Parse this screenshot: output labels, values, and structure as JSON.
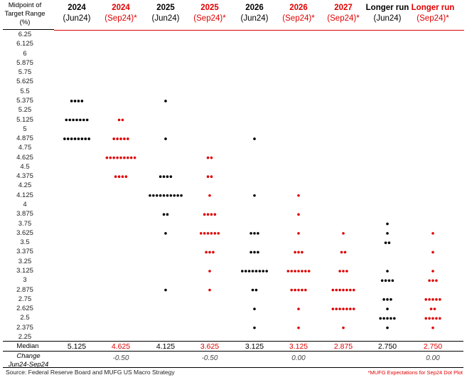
{
  "y_header": [
    "Midpoint of",
    "Target Range",
    "(%)"
  ],
  "columns": [
    {
      "year": "2024",
      "sub": "(Jun24)",
      "color": "#000000"
    },
    {
      "year": "2024",
      "sub": "(Sep24)*",
      "color": "#e00000"
    },
    {
      "year": "2025",
      "sub": "(Jun24)",
      "color": "#000000"
    },
    {
      "year": "2025",
      "sub": "(Sep24)*",
      "color": "#e00000"
    },
    {
      "year": "2026",
      "sub": "(Jun24)",
      "color": "#000000"
    },
    {
      "year": "2026",
      "sub": "(Sep24)*",
      "color": "#e00000"
    },
    {
      "year": "2027",
      "sub": "(Sep24)*",
      "color": "#e00000"
    },
    {
      "year": "Longer run",
      "sub": "(Jun24)",
      "color": "#000000"
    },
    {
      "year": "Longer run",
      "sub": "(Sep24)*",
      "color": "#e00000"
    }
  ],
  "median_label": "Median",
  "median_values": [
    "5.125",
    "4.625",
    "4.125",
    "3.625",
    "3.125",
    "3.125",
    "2.875",
    "2.750",
    "2.750"
  ],
  "change_label_1": "Change",
  "change_label_2": "Jun24-Sep24",
  "change_values": [
    "",
    "-0.50",
    "",
    "-0.50",
    "",
    "0.00",
    "",
    "",
    "0.00"
  ],
  "source": "Source: Federal Reserve Board and MUFG US Macro Strategy",
  "footnote": "*MUFG Expectations for Sep24 Dot Plot",
  "chart_data": {
    "type": "scatter",
    "ylabel": "Midpoint of Target Range (%)",
    "y_ticks": [
      "6.25",
      "6.125",
      "6",
      "5.875",
      "5.75",
      "5.625",
      "5.5",
      "5.375",
      "5.25",
      "5.125",
      "5",
      "4.875",
      "4.75",
      "4.625",
      "4.5",
      "4.375",
      "4.25",
      "4.125",
      "4",
      "3.875",
      "3.75",
      "3.625",
      "3.5",
      "3.375",
      "3.25",
      "3.125",
      "3",
      "2.875",
      "2.75",
      "2.625",
      "2.5",
      "2.375",
      "2.25"
    ],
    "series": [
      {
        "name": "2024 (Jun24)",
        "dots": {
          "5.375": 4,
          "5.125": 7,
          "4.875": 8
        }
      },
      {
        "name": "2024 (Sep24)*",
        "dots": {
          "5.125": 2,
          "4.875": 5,
          "4.625": 9,
          "4.375": 4
        }
      },
      {
        "name": "2025 (Jun24)",
        "dots": {
          "5.375": 1,
          "4.875": 1,
          "4.375": 4,
          "4.125": 10,
          "3.875": 2,
          "3.625": 1,
          "2.875": 1
        }
      },
      {
        "name": "2025 (Sep24)*",
        "dots": {
          "4.625": 2,
          "4.375": 2,
          "4.125": 1,
          "3.875": 4,
          "3.625": 6,
          "3.375": 3,
          "3.125": 1,
          "2.875": 1
        }
      },
      {
        "name": "2026 (Jun24)",
        "dots": {
          "4.875": 1,
          "4.125": 1,
          "3.625": 3,
          "3.375": 3,
          "3.125": 8,
          "2.875": 2,
          "2.625": 1,
          "2.375": 1
        }
      },
      {
        "name": "2026 (Sep24)*",
        "dots": {
          "4.125": 1,
          "3.875": 1,
          "3.625": 1,
          "3.375": 3,
          "3.125": 7,
          "2.875": 5,
          "2.625": 1,
          "2.375": 1
        }
      },
      {
        "name": "2027 (Sep24)*",
        "dots": {
          "3.625": 1,
          "3.375": 2,
          "3.125": 3,
          "2.875": 7,
          "2.625": 7,
          "2.375": 1
        }
      },
      {
        "name": "Longer run (Jun24)",
        "dots": {
          "3.75": 1,
          "3.625": 1,
          "3.5": 2,
          "3.125": 1,
          "3": 4,
          "2.75": 3,
          "2.625": 1,
          "2.5": 5,
          "2.375": 1
        }
      },
      {
        "name": "Longer run (Sep24)*",
        "dots": {
          "3.625": 1,
          "3.375": 1,
          "3.125": 1,
          "3": 3,
          "2.75": 5,
          "2.625": 2,
          "2.5": 5,
          "2.375": 1
        }
      }
    ]
  }
}
